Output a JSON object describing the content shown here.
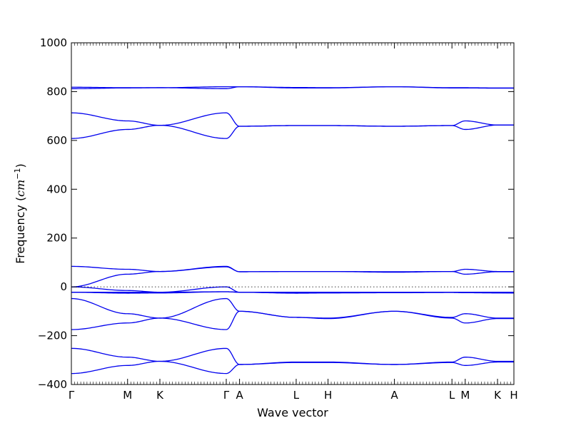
{
  "chart_data": {
    "type": "line",
    "xlabel": "Wave vector",
    "ylabel": "Frequency (",
    "ylabel_unit_base": "cm",
    "ylabel_unit_exp": "−1",
    "ylabel_close": ")",
    "ylim": [
      -400,
      1000
    ],
    "yticks": [
      "−400",
      "−200",
      "0",
      "200",
      "400",
      "600",
      "800",
      "1000"
    ],
    "ytick_values": [
      -400,
      -200,
      0,
      200,
      400,
      600,
      800,
      1000
    ],
    "zero_line": true,
    "grid": false,
    "line_color": "#0000ee",
    "kpoints": [
      {
        "label": "Γ",
        "x": 0.0
      },
      {
        "label": "M",
        "x": 0.127
      },
      {
        "label": "K",
        "x": 0.2
      },
      {
        "label": "Γ",
        "x": 0.35
      },
      {
        "label": "A",
        "x": 0.38
      },
      {
        "label": "L",
        "x": 0.508
      },
      {
        "label": "H",
        "x": 0.58
      },
      {
        "label": "A",
        "x": 0.73
      },
      {
        "label": "L",
        "x": 0.86
      },
      {
        "label": "M",
        "x": 0.89
      },
      {
        "label": "K",
        "x": 0.963
      },
      {
        "label": "H",
        "x": 1.0
      }
    ],
    "series": [
      {
        "x": [
          0,
          0.127,
          0.2,
          0.35,
          0.38,
          0.508,
          0.58,
          0.73,
          0.86,
          0.89,
          0.963,
          1.0
        ],
        "y": [
          -355,
          -322,
          -305,
          -355,
          -318,
          -310,
          -310,
          -318,
          -310,
          -322,
          -308,
          -308
        ]
      },
      {
        "x": [
          0,
          0.127,
          0.2,
          0.35,
          0.38,
          0.508,
          0.58,
          0.73,
          0.86,
          0.89,
          0.963,
          1.0
        ],
        "y": [
          -252,
          -288,
          -305,
          -252,
          -318,
          -308,
          -308,
          -318,
          -308,
          -288,
          -305,
          -305
        ]
      },
      {
        "x": [
          0,
          0.127,
          0.2,
          0.35,
          0.38,
          0.508,
          0.58,
          0.73,
          0.86,
          0.89,
          0.963,
          1.0
        ],
        "y": [
          -175,
          -148,
          -128,
          -175,
          -100,
          -125,
          -130,
          -100,
          -128,
          -148,
          -130,
          -130
        ]
      },
      {
        "x": [
          0,
          0.127,
          0.2,
          0.35,
          0.38,
          0.508,
          0.58,
          0.73,
          0.86,
          0.89,
          0.963,
          1.0
        ],
        "y": [
          -48,
          -110,
          -128,
          -48,
          -100,
          -125,
          -128,
          -100,
          -125,
          -110,
          -128,
          -128
        ]
      },
      {
        "x": [
          0,
          0.127,
          0.2,
          0.35,
          0.38,
          0.508,
          0.58,
          0.73,
          0.86,
          0.89,
          0.963,
          1.0
        ],
        "y": [
          -22,
          -26,
          -25,
          -20,
          -22,
          -26,
          -25,
          -24,
          -23,
          -24,
          -25,
          -25
        ]
      },
      {
        "x": [
          0,
          0.127,
          0.2,
          0.35,
          0.38,
          0.508,
          0.58,
          0.73,
          0.86,
          0.89,
          0.963,
          1.0
        ],
        "y": [
          -22,
          -22,
          -22,
          -20,
          -22,
          -22,
          -22,
          -22,
          -22,
          -22,
          -22,
          -22
        ]
      },
      {
        "x": [
          0,
          0.127,
          0.2,
          0.35,
          0.38,
          0.508,
          0.58,
          0.73,
          0.86,
          0.89,
          0.963,
          1.0
        ],
        "y": [
          0,
          -15,
          -22,
          0,
          -22,
          -25,
          -24,
          -22,
          -22,
          -22,
          -24,
          -25
        ]
      },
      {
        "x": [
          0,
          0.127,
          0.2,
          0.35,
          0.38,
          0.508,
          0.58,
          0.73,
          0.86,
          0.89,
          0.963,
          1.0
        ],
        "y": [
          0,
          52,
          63,
          82,
          62,
          63,
          63,
          60,
          63,
          52,
          62,
          62
        ]
      },
      {
        "x": [
          0,
          0.127,
          0.2,
          0.35,
          0.38,
          0.508,
          0.58,
          0.73,
          0.86,
          0.89,
          0.963,
          1.0
        ],
        "y": [
          84,
          72,
          63,
          84,
          62,
          63,
          63,
          62,
          63,
          72,
          63,
          63
        ]
      },
      {
        "x": [
          0,
          0.127,
          0.2,
          0.35,
          0.38,
          0.508,
          0.58,
          0.73,
          0.86,
          0.89,
          0.963,
          1.0
        ],
        "y": [
          608,
          645,
          662,
          608,
          658,
          661,
          661,
          658,
          661,
          645,
          663,
          663
        ]
      },
      {
        "x": [
          0,
          0.127,
          0.2,
          0.35,
          0.38,
          0.508,
          0.58,
          0.73,
          0.86,
          0.89,
          0.963,
          1.0
        ],
        "y": [
          713,
          680,
          662,
          713,
          658,
          661,
          661,
          658,
          661,
          680,
          663,
          663
        ]
      },
      {
        "x": [
          0,
          0.127,
          0.2,
          0.35,
          0.38,
          0.508,
          0.58,
          0.73,
          0.86,
          0.89,
          0.963,
          1.0
        ],
        "y": [
          812,
          815,
          816,
          812,
          820,
          815,
          815,
          820,
          815,
          815,
          814,
          814
        ]
      },
      {
        "x": [
          0,
          0.127,
          0.2,
          0.35,
          0.38,
          0.508,
          0.58,
          0.73,
          0.86,
          0.89,
          0.963,
          1.0
        ],
        "y": [
          818,
          816,
          816,
          820,
          820,
          817,
          816,
          820,
          816,
          816,
          815,
          815
        ]
      }
    ]
  }
}
